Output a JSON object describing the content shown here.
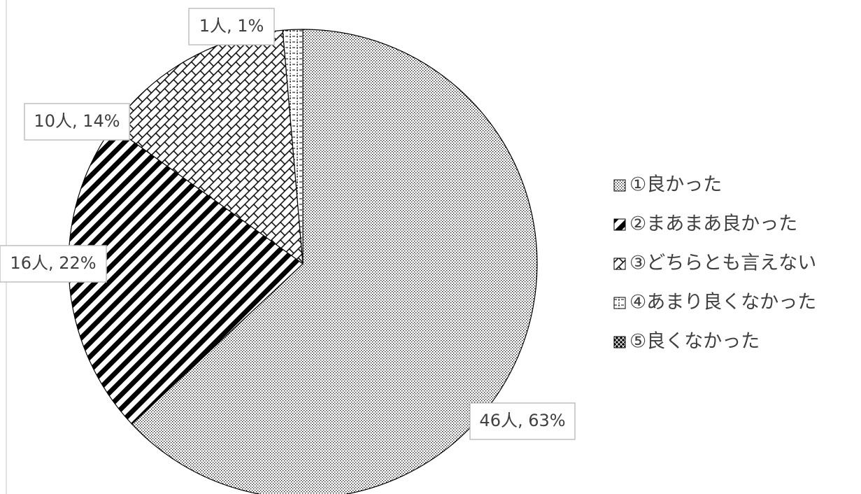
{
  "chart_data": {
    "type": "pie",
    "categories": [
      "①良かった",
      "②まあまあ良かった",
      "③どちらとも言えない",
      "④あまり良くなかった",
      "⑤良くなかった"
    ],
    "values": [
      46,
      16,
      10,
      1,
      0
    ],
    "value_labels": [
      "46人, 63%",
      "16人, 22%",
      "10人, 14%",
      "1人, 1%",
      null
    ]
  }
}
